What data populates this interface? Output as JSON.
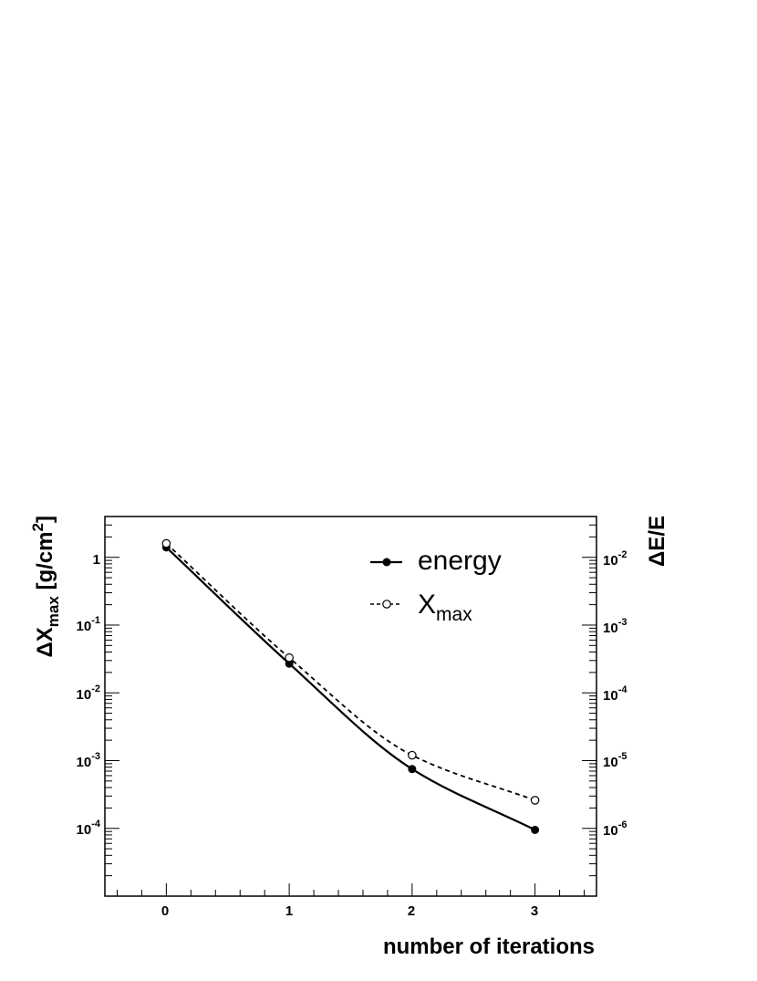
{
  "chart_data": {
    "type": "line",
    "xlabel": "number of iterations",
    "ylabel": {
      "base": "ΔX",
      "sub": "max",
      "unit_pre": " [g/cm",
      "unit_sup": "2",
      "unit_post": "]"
    },
    "ylabel_right": "ΔE/E",
    "xlim": [
      -0.5,
      3.5
    ],
    "ylim": [
      1e-05,
      4.0
    ],
    "yscale": "log",
    "ylim_right": [
      1e-07,
      0.04
    ],
    "yscale_right": "log",
    "x_ticks": [
      "0",
      "1",
      "2",
      "3"
    ],
    "y_ticks_left": [
      {
        "value": 1,
        "mant": "1",
        "exp": ""
      },
      {
        "value": 0.1,
        "mant": "10",
        "exp": "-1"
      },
      {
        "value": 0.01,
        "mant": "10",
        "exp": "-2"
      },
      {
        "value": 0.001,
        "mant": "10",
        "exp": "-3"
      },
      {
        "value": 0.0001,
        "mant": "10",
        "exp": "-4"
      }
    ],
    "y_ticks_right": [
      {
        "value": 0.01,
        "mant": "10",
        "exp": "-2"
      },
      {
        "value": 0.001,
        "mant": "10",
        "exp": "-3"
      },
      {
        "value": 0.0001,
        "mant": "10",
        "exp": "-4"
      },
      {
        "value": 1e-05,
        "mant": "10",
        "exp": "-5"
      },
      {
        "value": 1e-06,
        "mant": "10",
        "exp": "-6"
      }
    ],
    "grid": false,
    "legend_position": "top-right",
    "series": [
      {
        "name": "energy",
        "name_sub": "",
        "style": "solid",
        "marker": "filled-circle",
        "x": [
          0,
          1,
          2,
          3
        ],
        "y": [
          1.4,
          0.027,
          0.00075,
          9.5e-05
        ]
      },
      {
        "name": "X",
        "name_sub": "max",
        "style": "dashed",
        "marker": "open-circle",
        "x": [
          0,
          1,
          2,
          3
        ],
        "y": [
          1.6,
          0.033,
          0.0012,
          0.00026
        ]
      }
    ]
  }
}
